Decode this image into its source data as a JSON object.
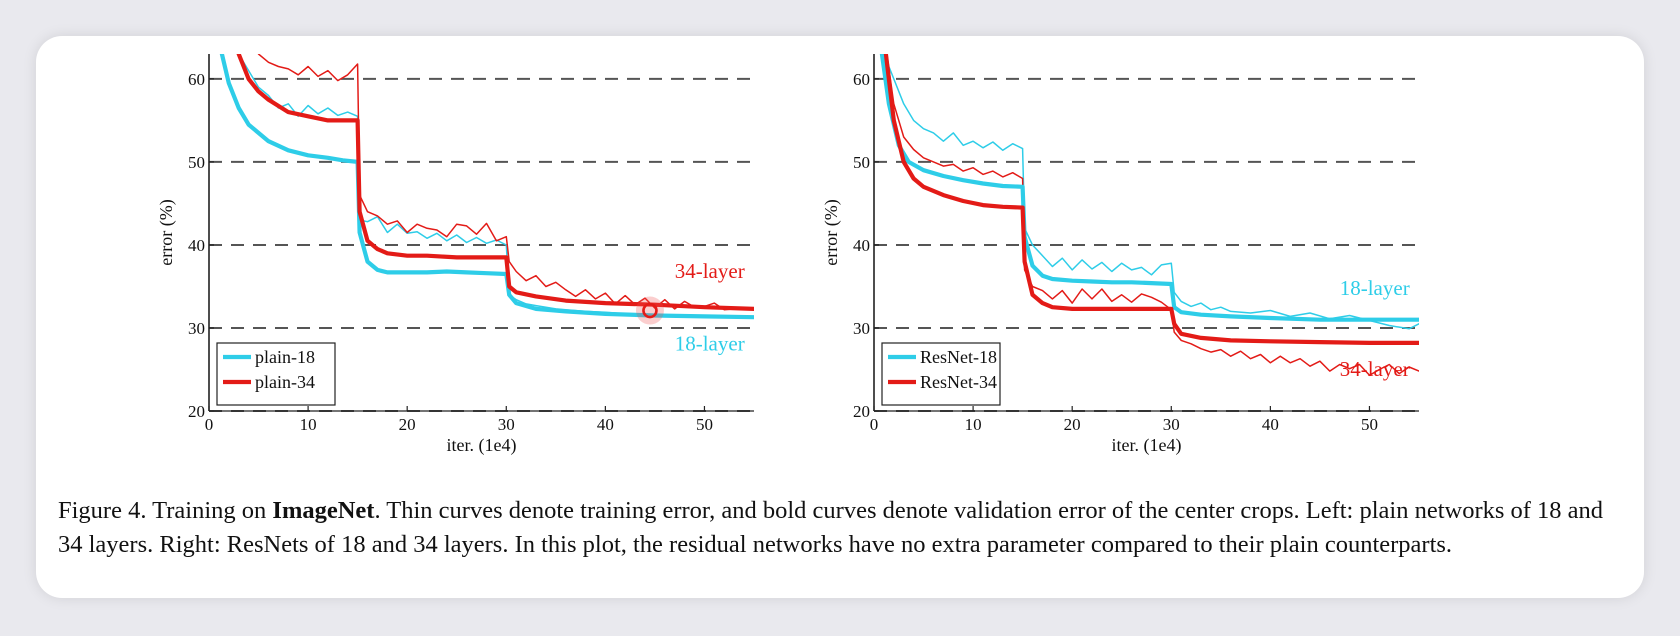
{
  "colors": {
    "cyan": "#2ecde8",
    "red": "#e31b17",
    "grid": "#555555"
  },
  "chart_data": [
    {
      "type": "line",
      "xlabel": "iter. (1e4)",
      "ylabel": "error (%)",
      "xlim": [
        0,
        55
      ],
      "ylim": [
        20,
        63
      ],
      "xticks": [
        0,
        10,
        20,
        30,
        40,
        50
      ],
      "yticks": [
        20,
        30,
        40,
        50,
        60
      ],
      "grid": "dashed horizontal at 30, 40, 50, 60",
      "legend": [
        "plain-18",
        "plain-34"
      ],
      "legend_position": "bottom-left",
      "annotations": [
        {
          "text": "34-layer",
          "color": "red",
          "x": 47,
          "y": 36
        },
        {
          "text": "18-layer",
          "color": "cyan",
          "x": 47,
          "y": 27.3
        }
      ],
      "highlight_point": {
        "x": 44.5,
        "y": 32.1
      },
      "series": [
        {
          "name": "plain-18",
          "color": "cyan",
          "style": "bold",
          "x": [
            1.3,
            2,
            3,
            4,
            6,
            8,
            10,
            12,
            13.5,
            15,
            15.2,
            16,
            17,
            18,
            20,
            22,
            24,
            26,
            28,
            30,
            30.3,
            31,
            33,
            36,
            40,
            45,
            50,
            55
          ],
          "y": [
            63,
            59.5,
            56.5,
            54.5,
            52.5,
            51.4,
            50.8,
            50.5,
            50.2,
            50,
            41.5,
            38,
            37,
            36.7,
            36.7,
            36.7,
            36.8,
            36.7,
            36.6,
            36.5,
            34,
            33,
            32.3,
            32,
            31.7,
            31.5,
            31.4,
            31.3
          ]
        },
        {
          "name": "plain-34",
          "color": "red",
          "style": "bold",
          "x": [
            3,
            4,
            5,
            6,
            8,
            10,
            12,
            14,
            15,
            15.2,
            16,
            17,
            18,
            20,
            22,
            25,
            28,
            30,
            30.3,
            31,
            33,
            36,
            40,
            45,
            50,
            55
          ],
          "y": [
            63,
            60,
            58.5,
            57.5,
            56,
            55.5,
            55,
            55,
            55,
            44,
            40.5,
            39.5,
            39,
            38.7,
            38.7,
            38.5,
            38.5,
            38.5,
            35,
            34.3,
            33.8,
            33.3,
            33,
            32.8,
            32.5,
            32.3
          ]
        },
        {
          "name": "plain-18 train",
          "color": "cyan",
          "style": "thin",
          "x": [
            3,
            4,
            5,
            6,
            7,
            8,
            9,
            10,
            11,
            12,
            13,
            14,
            15,
            15.2,
            16,
            17,
            18,
            19,
            20,
            21,
            22,
            23,
            24,
            25,
            26,
            27,
            28,
            29,
            30,
            30.3,
            31,
            32,
            33,
            34,
            35,
            36,
            38,
            40,
            42,
            44,
            46,
            48,
            50,
            52,
            54,
            55
          ],
          "y": [
            63,
            61,
            59,
            58,
            56.5,
            57,
            55.5,
            56.8,
            55.8,
            56.5,
            55.6,
            56,
            55.5,
            43,
            42.8,
            43.4,
            41.5,
            42.5,
            41.4,
            41.6,
            40.8,
            41.4,
            40.5,
            41.2,
            40.3,
            40.9,
            40.2,
            40.6,
            40,
            34,
            33.4,
            32.9,
            32.7,
            32.5,
            32.3,
            32.2,
            32,
            31.9,
            31.7,
            31.6,
            31.5,
            31.4,
            31.4,
            31.3,
            31.2,
            31.2
          ]
        },
        {
          "name": "plain-34 train",
          "color": "red",
          "style": "thin",
          "x": [
            5,
            6,
            7,
            8,
            9,
            10,
            11,
            12,
            13,
            14,
            15,
            15.2,
            16,
            17,
            18,
            19,
            20,
            21,
            22,
            23,
            24,
            25,
            26,
            27,
            28,
            29,
            30,
            30.3,
            31,
            32,
            33,
            34,
            35,
            36,
            37,
            38,
            39,
            40,
            41,
            42,
            43,
            44,
            45,
            46,
            47,
            48,
            49,
            50,
            51,
            52,
            53,
            54,
            55
          ],
          "y": [
            63,
            62,
            61.5,
            61.2,
            60.5,
            61.5,
            60.3,
            61,
            59.8,
            60.5,
            61.8,
            46,
            44,
            43.5,
            42.5,
            42.9,
            41.5,
            42.5,
            42,
            41.8,
            41,
            42.5,
            42.3,
            41.3,
            42.6,
            40.5,
            41,
            38,
            36.8,
            35.7,
            36.3,
            35,
            35.5,
            34.6,
            33.8,
            34.6,
            33.5,
            34.2,
            32.9,
            33.9,
            32.8,
            33.6,
            32.4,
            33.4,
            32.3,
            33.2,
            32.5,
            32.6,
            33,
            32.2,
            32.3,
            32.2,
            32.2
          ]
        }
      ]
    },
    {
      "type": "line",
      "xlabel": "iter. (1e4)",
      "ylabel": "error (%)",
      "xlim": [
        0,
        55
      ],
      "ylim": [
        20,
        63
      ],
      "xticks": [
        0,
        10,
        20,
        30,
        40,
        50
      ],
      "yticks": [
        20,
        30,
        40,
        50,
        60
      ],
      "grid": "dashed horizontal at 30, 40, 50, 60",
      "legend": [
        "ResNet-18",
        "ResNet-34"
      ],
      "legend_position": "bottom-left",
      "annotations": [
        {
          "text": "18-layer",
          "color": "cyan",
          "x": 47,
          "y": 34
        },
        {
          "text": "34-layer",
          "color": "red",
          "x": 47,
          "y": 24.2
        }
      ],
      "series": [
        {
          "name": "ResNet-18",
          "color": "cyan",
          "style": "bold",
          "x": [
            0.8,
            1.5,
            2.5,
            3.5,
            5,
            7,
            9,
            11,
            13,
            15,
            15.2,
            16,
            17,
            18,
            20,
            22,
            24,
            26,
            28,
            30,
            30.3,
            31,
            33,
            36,
            40,
            45,
            50,
            55
          ],
          "y": [
            63,
            57,
            52,
            50,
            49,
            48.3,
            47.8,
            47.4,
            47.1,
            47,
            41,
            37.5,
            36.3,
            35.9,
            35.7,
            35.6,
            35.5,
            35.5,
            35.4,
            35.3,
            32.5,
            31.9,
            31.6,
            31.4,
            31.2,
            31,
            31,
            31
          ]
        },
        {
          "name": "ResNet-34",
          "color": "red",
          "style": "bold",
          "x": [
            1.2,
            2,
            3,
            4,
            5,
            7,
            9,
            11,
            13,
            15,
            15.2,
            16,
            17,
            18,
            20,
            22,
            24,
            26,
            28,
            30,
            30.3,
            31,
            33,
            36,
            40,
            45,
            50,
            55
          ],
          "y": [
            63,
            55,
            50,
            48,
            47,
            46,
            45.3,
            44.8,
            44.6,
            44.5,
            38,
            34,
            33,
            32.5,
            32.3,
            32.3,
            32.3,
            32.3,
            32.3,
            32.3,
            30.5,
            29.3,
            28.8,
            28.5,
            28.4,
            28.3,
            28.2,
            28.2
          ]
        },
        {
          "name": "ResNet-18 train",
          "color": "cyan",
          "style": "thin",
          "x": [
            1,
            2,
            3,
            4,
            5,
            6,
            7,
            8,
            9,
            10,
            11,
            12,
            13,
            14,
            15,
            15.2,
            16,
            17,
            18,
            19,
            20,
            21,
            22,
            23,
            24,
            25,
            26,
            27,
            28,
            29,
            30,
            30.3,
            31,
            32,
            33,
            34,
            35,
            36,
            38,
            40,
            42,
            44,
            46,
            48,
            50,
            52,
            54,
            55
          ],
          "y": [
            63,
            60,
            57,
            55,
            54,
            53.5,
            52.5,
            53.5,
            52,
            52.5,
            51.7,
            52.4,
            51.4,
            52.2,
            51.6,
            42,
            40,
            38.7,
            37.4,
            38.4,
            37,
            38.2,
            37.1,
            37.9,
            36.8,
            37.8,
            37,
            37.3,
            36.4,
            37.6,
            37.8,
            34.3,
            33.2,
            32.6,
            33,
            32.2,
            32.5,
            32,
            31.8,
            32.1,
            31.4,
            31.8,
            31.1,
            31.5,
            30.9,
            30.3,
            29.9,
            30.5
          ]
        },
        {
          "name": "ResNet-34 train",
          "color": "red",
          "style": "thin",
          "x": [
            1.3,
            2,
            3,
            4,
            5,
            6,
            7,
            8,
            9,
            10,
            11,
            12,
            13,
            14,
            15,
            15.2,
            16,
            17,
            18,
            19,
            20,
            21,
            22,
            23,
            24,
            25,
            26,
            27,
            28,
            29,
            30,
            30.3,
            31,
            32,
            33,
            34,
            35,
            36,
            37,
            38,
            39,
            40,
            41,
            42,
            43,
            44,
            45,
            46,
            47,
            48,
            49,
            50,
            51,
            52,
            53,
            54,
            55
          ],
          "y": [
            63,
            57,
            53,
            51.5,
            50.5,
            50,
            49.5,
            49.7,
            48.9,
            49.3,
            48.5,
            48.9,
            48.2,
            48.7,
            48,
            37,
            35,
            34.5,
            33.5,
            34.5,
            33,
            34.7,
            33.5,
            34.7,
            33.2,
            34,
            33.1,
            34.1,
            33.7,
            33.1,
            32.2,
            29.5,
            28.5,
            28.1,
            27.5,
            27.1,
            27.4,
            26.6,
            27.2,
            26.3,
            26.8,
            25.8,
            26.6,
            25.8,
            26.3,
            25.4,
            26,
            24.8,
            25.6,
            25.1,
            25.6,
            24.3,
            25,
            25.6,
            24.5,
            25.3,
            24.8
          ]
        }
      ]
    }
  ],
  "caption": {
    "prefix": "Figure 4. Training on ",
    "bold": "ImageNet",
    "rest": ". Thin curves denote training error, and bold curves denote validation error of the center crops. Left: plain networks of 18 and 34 layers. Right: ResNets of 18 and 34 layers. In this plot, the residual networks have no extra parameter compared to their plain counterparts."
  }
}
